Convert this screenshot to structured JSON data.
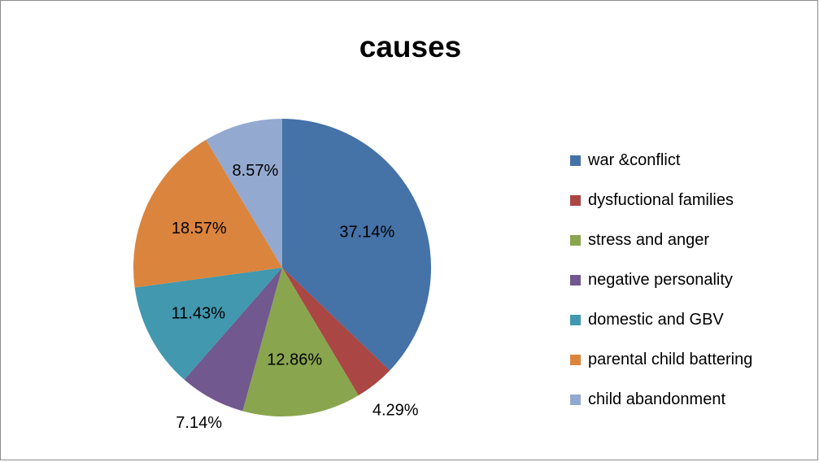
{
  "chart_data": {
    "type": "pie",
    "title": "causes",
    "legend_position": "right",
    "slices": [
      {
        "label": "war &conflict",
        "value": 37.14,
        "value_label": "37.14%",
        "color": "#4572A7"
      },
      {
        "label": "dysfuctional families",
        "value": 4.29,
        "value_label": "4.29%",
        "color": "#AA4643"
      },
      {
        "label": "stress and anger",
        "value": 12.86,
        "value_label": "12.86%",
        "color": "#89A54E"
      },
      {
        "label": "negative personality",
        "value": 7.14,
        "value_label": "7.14%",
        "color": "#71588F"
      },
      {
        "label": "domestic and GBV",
        "value": 11.43,
        "value_label": "11.43%",
        "color": "#4198AF"
      },
      {
        "label": "parental child battering",
        "value": 18.57,
        "value_label": "18.57%",
        "color": "#DB843D"
      },
      {
        "label": "child abandonment",
        "value": 8.57,
        "value_label": "8.57%",
        "color": "#93A9CF"
      }
    ]
  }
}
